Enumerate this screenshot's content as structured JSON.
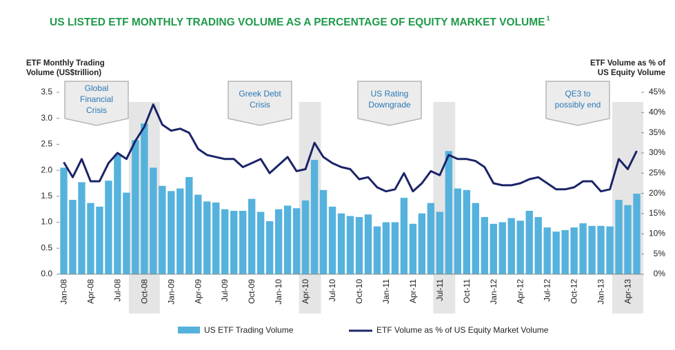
{
  "chart_data": {
    "type": "bar-line",
    "title": "US LISTED ETF MONTHLY TRADING VOLUME AS A PERCENTAGE OF EQUITY MARKET VOLUME",
    "title_note": "1",
    "y_label": [
      "ETF Monthly Trading",
      "Volume (US$trillion)"
    ],
    "y2_label": [
      "ETF Volume  as % of",
      "US Equity Volume"
    ],
    "categories": [
      "Jan-08",
      null,
      null,
      "Apr-08",
      null,
      null,
      "Jul-08",
      null,
      null,
      "Oct-08",
      null,
      null,
      "Jan-09",
      null,
      null,
      "Apr-09",
      null,
      null,
      "Jul-09",
      null,
      null,
      "Oct-09",
      null,
      null,
      "Jan-10",
      null,
      null,
      "Apr-10",
      null,
      null,
      "Jul-10",
      null,
      null,
      "Oct-10",
      null,
      null,
      "Jan-11",
      null,
      null,
      "Apr-11",
      null,
      null,
      "Jul-11",
      null,
      null,
      "Oct-11",
      null,
      null,
      "Jan-12",
      null,
      null,
      "Apr-12",
      null,
      null,
      "Jul-12",
      null,
      null,
      "Oct-12",
      null,
      null,
      "Jan-13",
      null,
      null,
      "Apr-13",
      null
    ],
    "series": [
      {
        "name": "US ETF Trading Volume",
        "color": "#55b2dd",
        "axis": "y",
        "values": [
          2.05,
          1.43,
          1.77,
          1.37,
          1.3,
          1.8,
          2.3,
          1.57,
          2.58,
          2.9,
          2.05,
          1.7,
          1.6,
          1.65,
          1.87,
          1.53,
          1.4,
          1.38,
          1.25,
          1.22,
          1.22,
          1.45,
          1.2,
          1.02,
          1.25,
          1.32,
          1.27,
          1.42,
          2.2,
          1.62,
          1.3,
          1.17,
          1.12,
          1.1,
          1.15,
          0.92,
          1.0,
          1.0,
          1.47,
          0.97,
          1.17,
          1.37,
          1.2,
          2.37,
          1.65,
          1.62,
          1.37,
          1.1,
          0.97,
          1.0,
          1.08,
          1.03,
          1.22,
          1.1,
          0.9,
          0.82,
          0.85,
          0.9,
          0.98,
          0.93,
          0.93,
          0.92,
          1.43,
          1.33,
          1.55
        ]
      },
      {
        "name": "ETF Volume as % of US Equity Market Volume",
        "color": "#1b2468",
        "axis": "y2",
        "values": [
          27.7,
          24,
          28.5,
          23,
          23,
          27.5,
          30,
          28.5,
          33,
          36.5,
          42,
          37,
          35.5,
          36,
          35,
          31,
          29.5,
          29,
          28.5,
          28.5,
          26.5,
          27.5,
          28.5,
          25,
          27,
          29,
          25.5,
          26,
          32.5,
          29,
          27.5,
          26.5,
          26,
          23.5,
          24,
          21.5,
          20.5,
          21,
          25,
          20.5,
          22.5,
          25.5,
          24.5,
          29.5,
          28.5,
          28.5,
          28,
          26.5,
          22.5,
          22,
          22,
          22.5,
          23.5,
          24,
          22.5,
          21,
          21,
          21.5,
          23,
          23,
          20.5,
          21,
          28.5,
          26,
          30.5
        ]
      }
    ],
    "ylim": [
      0,
      3.5
    ],
    "yticks": [
      {
        "value": 0,
        "label": "0.0"
      },
      0.5,
      {
        "value": 1,
        "label": "1.0"
      },
      1.5,
      {
        "value": 2,
        "label": "2.0"
      },
      2.5,
      {
        "value": 3,
        "label": "3.0"
      },
      3.5
    ],
    "y2lim": [
      0,
      45
    ],
    "y2ticks": [
      {
        "value": 0,
        "label": "0%"
      },
      {
        "value": 5,
        "label": "5%"
      },
      {
        "value": 10,
        "label": "10%"
      },
      {
        "value": 15,
        "label": "15%"
      },
      {
        "value": 20,
        "label": "20%"
      },
      {
        "value": 25,
        "label": "25%"
      },
      {
        "value": 30,
        "label": "30%"
      },
      {
        "value": 35,
        "label": "35%"
      },
      {
        "value": 40,
        "label": "40%"
      },
      {
        "value": 45,
        "label": "45%"
      }
    ],
    "annotations": [
      {
        "lines": [
          "Global",
          "Financial",
          "Crisis"
        ],
        "shade": [
          8,
          10
        ]
      },
      {
        "lines": [
          "Greek Debt",
          "Crisis"
        ],
        "shade": [
          27,
          28
        ]
      },
      {
        "lines": [
          "US Rating",
          "Downgrade"
        ],
        "shade": [
          42,
          43
        ]
      },
      {
        "lines": [
          "QE3 to",
          "possibly end"
        ],
        "shade": [
          62,
          64
        ]
      }
    ],
    "legend": "bottom"
  }
}
